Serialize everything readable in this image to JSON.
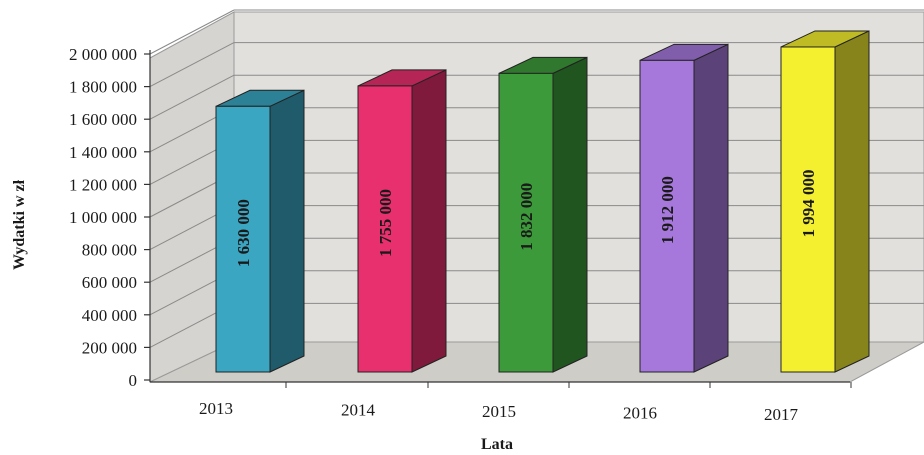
{
  "chart_data": {
    "type": "bar",
    "title": "",
    "xlabel": "Lata",
    "ylabel": "Wydatki w zł",
    "ylim": [
      0,
      2000000
    ],
    "ytick_values": [
      0,
      200000,
      400000,
      600000,
      800000,
      1000000,
      1200000,
      1400000,
      1600000,
      1800000,
      2000000
    ],
    "ytick_labels": [
      "0",
      "200 000",
      "400 000",
      "600 000",
      "800 000",
      "1 000 000",
      "1 200 000",
      "1 400 000",
      "1 600 000",
      "1 800 000",
      "2 000 000"
    ],
    "categories": [
      "2013",
      "2014",
      "2015",
      "2016",
      "2017"
    ],
    "values": [
      1630000,
      1755000,
      1832000,
      1912000,
      1994000
    ],
    "data_labels": [
      "1 630 000",
      "1 755 000",
      "1 832 000",
      "1 912 000",
      "1 994 000"
    ],
    "colors": [
      "#3aa6c2",
      "#e8306e",
      "#3c9a3a",
      "#a678dc",
      "#f4f030"
    ],
    "grid": true,
    "legend": "none"
  }
}
